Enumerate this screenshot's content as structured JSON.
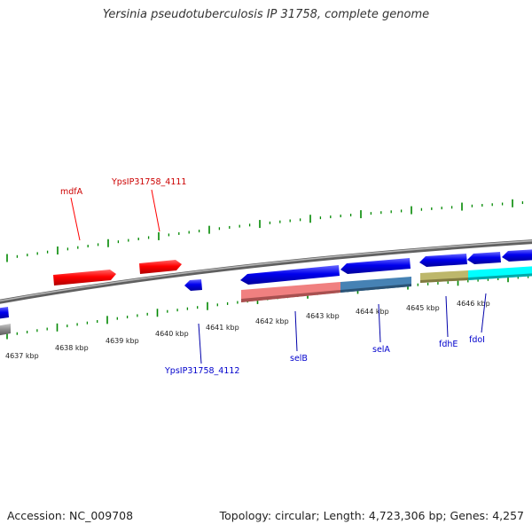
{
  "title": "Yersinia pseudotuberculosis IP 31758, complete genome",
  "accession_label": "Accession: NC_009708",
  "topology_label": "Topology: circular; Length: 4,723,306 bp; Genes: 4,257",
  "colors": {
    "forward_gene": "#ff0000",
    "reverse_gene": "#0000ee",
    "backbone": "#808080",
    "tick": "#008800",
    "cds_pink": "#f08080",
    "cds_steelblue": "#4682b4",
    "cds_khaki": "#bdb76b",
    "cds_cyan": "#00ffff"
  },
  "scale_ticks": [
    "4637 kbp",
    "4638 kbp",
    "4639 kbp",
    "4640 kbp",
    "4641 kbp",
    "4642 kbp",
    "4643 kbp",
    "4644 kbp",
    "4645 kbp",
    "4646 kbp"
  ],
  "forward_genes": [
    {
      "label": "mdfA",
      "labeled": true
    },
    {
      "label": "YpsIP31758_4111",
      "labeled": true
    }
  ],
  "reverse_gene_labels": [
    "YpsIP31758_4112",
    "selB",
    "selA",
    "fdhE",
    "fdoI"
  ]
}
